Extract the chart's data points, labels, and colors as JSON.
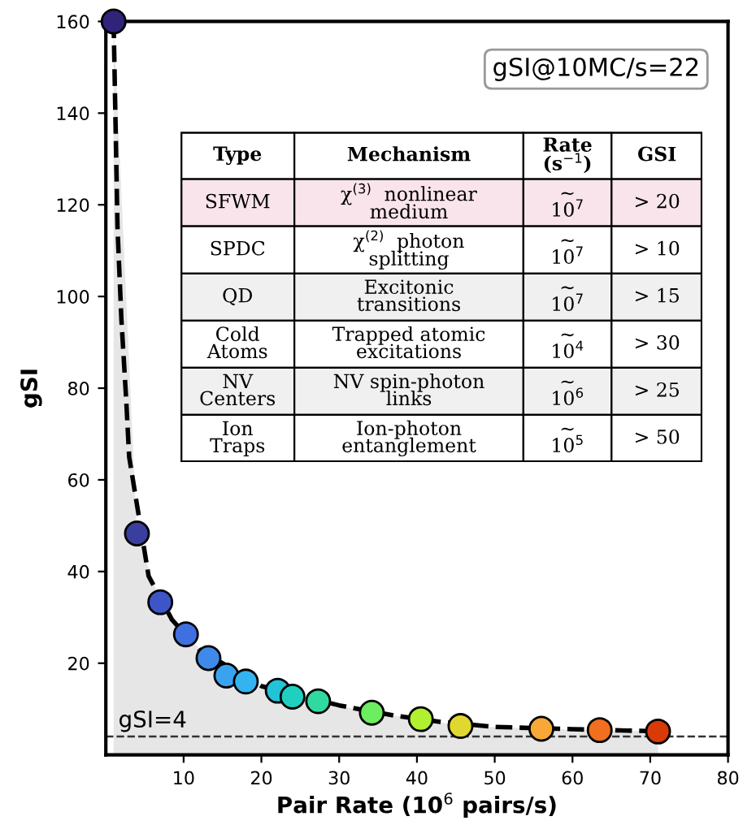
{
  "chart_data": [
    {
      "type": "scatter",
      "xlabel": "Pair Rate (10$^{6}$ pairs/s)",
      "ylabel": "gSI",
      "xlim": [
        0,
        80
      ],
      "ylim": [
        0,
        160
      ],
      "xticks": [
        10,
        20,
        30,
        40,
        50,
        60,
        70,
        80
      ],
      "yticks": [
        20,
        40,
        60,
        80,
        100,
        120,
        140,
        160
      ],
      "grid": false,
      "series": [
        {
          "type": "area",
          "color": "#e6e6e6",
          "x": [
            1.0,
            4.0,
            7.0,
            10.3,
            13.2,
            15.5,
            18.0,
            22.1,
            24.0,
            27.3,
            34.2,
            40.5,
            45.6,
            56.0,
            63.5,
            71.0
          ],
          "values": [
            160,
            48.3,
            33.3,
            26.3,
            21.1,
            17.3,
            16.0,
            14.0,
            12.7,
            11.7,
            9.2,
            7.8,
            6.3,
            5.7,
            5.4,
            5.1
          ]
        },
        {
          "type": "line",
          "color": "#000000",
          "line_style": "dashed",
          "x": [
            1.0,
            1.5,
            2.0,
            2.6,
            3.0,
            5.5,
            8.5,
            12.0,
            20.0,
            30.0,
            37.0,
            43.0,
            50.0,
            60.0,
            67.0,
            72.0
          ],
          "values": [
            160,
            115,
            95,
            78,
            65,
            39,
            29.5,
            23,
            15,
            10.8,
            8.6,
            7.2,
            6.1,
            5.6,
            5.3,
            5.1
          ]
        },
        {
          "type": "scatter",
          "marker": "circle",
          "x": [
            1.0,
            4.0,
            7.0,
            10.3,
            13.2,
            15.5,
            18.0,
            22.1,
            24.0,
            27.3,
            34.2,
            40.5,
            45.6,
            56.0,
            63.5,
            71.0
          ],
          "values": [
            160,
            48.3,
            33.3,
            26.3,
            21.1,
            17.3,
            16.0,
            14.0,
            12.7,
            11.7,
            9.2,
            7.8,
            6.3,
            5.7,
            5.4,
            5.1
          ],
          "colors": [
            "#30237a",
            "#3a3f9e",
            "#3e55c8",
            "#4070e0",
            "#3f8ae8",
            "#3aa3f0",
            "#33b4f0",
            "#22c3d8",
            "#1fd0c0",
            "#2fd9a0",
            "#6cee60",
            "#b0f030",
            "#e0d830",
            "#f8a838",
            "#f07020",
            "#d83a08"
          ]
        }
      ],
      "ref_lines": [
        {
          "axis": "y",
          "value": 4,
          "label": "gSI=4",
          "color": "#333333",
          "line_style": "dashed"
        }
      ],
      "annotations": [
        "gSI@10MC/s=22"
      ]
    },
    {
      "type": "other",
      "categories": [
        "Type",
        "Mechanism",
        "Rate\n(s$^{−1}$)",
        "GSI"
      ],
      "cell_labels": [
        [
          "SFWM",
          "χ$^{(3)}$  nonlinear\nmedium",
          "~\n10$^{7}$",
          "> 20"
        ],
        [
          "SPDC",
          "χ$^{(2)}$  photon\nsplitting",
          "~\n10$^{7}$",
          "> 10"
        ],
        [
          "QD",
          "Excitonic\ntransitions",
          "~\n10$^{7}$",
          "> 15"
        ],
        [
          "Cold\nAtoms",
          "Trapped atomic\nexcitations",
          "~\n10$^{4}$",
          "> 30"
        ],
        [
          "NV\nCenters",
          "NV spin-photon\nlinks",
          "~\n10$^{6}$",
          "> 25"
        ],
        [
          "Ion\nTraps",
          "Ion-photon\nentanglement",
          "~\n10$^{5}$",
          "> 50"
        ]
      ],
      "colors": [
        "#f8e4ea",
        "#ffffff",
        "#f0f0f0",
        "#ffffff",
        "#f0f0f0",
        "#ffffff"
      ]
    }
  ]
}
